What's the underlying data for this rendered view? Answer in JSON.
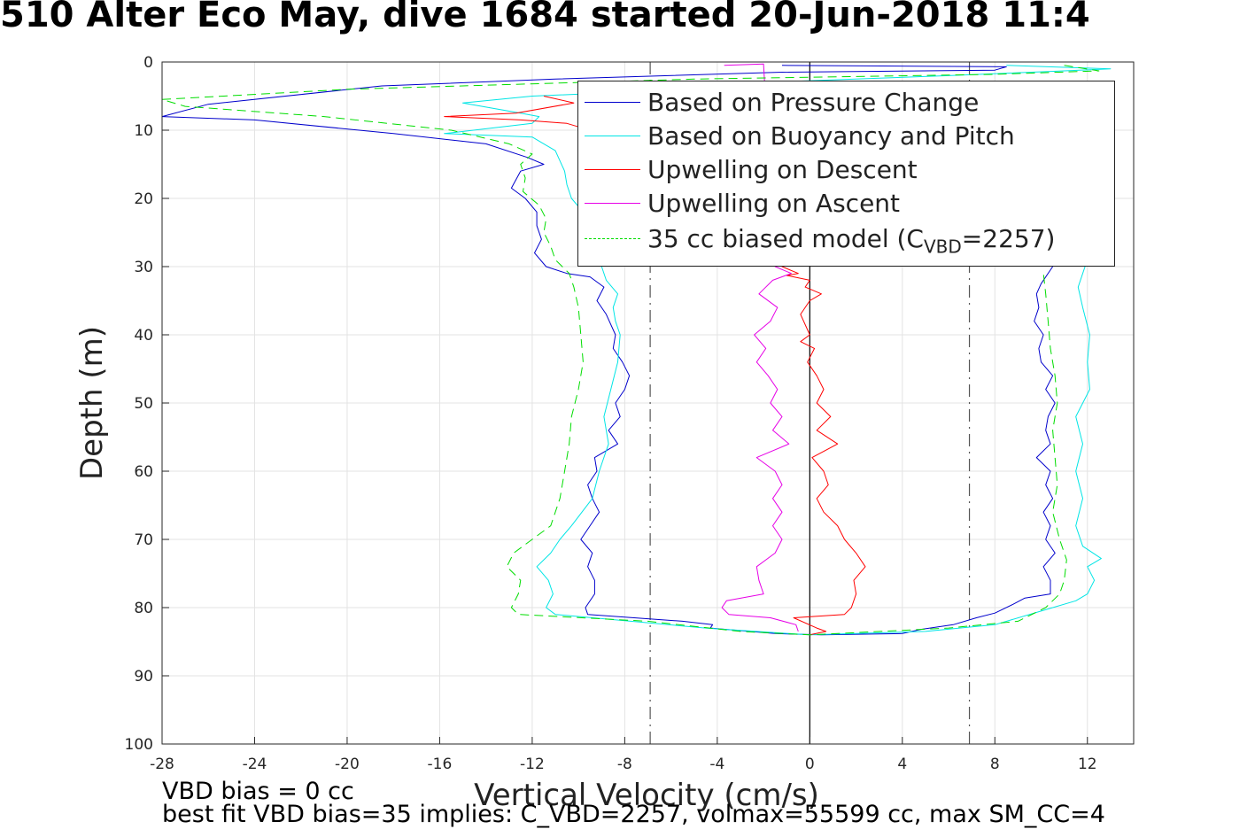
{
  "title": "510 Alter Eco May, dive 1684 started 20-Jun-2018 11:4",
  "notes": {
    "line1": "VBD bias = 0 cc",
    "line2": "best fit VBD bias=35 implies: C_VBD=2257, volmax=55599 cc, max SM_CC=4"
  },
  "chart_data": {
    "type": "line",
    "title": "510 Alter Eco May, dive 1684 started 20-Jun-2018 11:4",
    "xlabel": "Vertical Velocity (cm/s)",
    "ylabel": "Depth (m)",
    "xlim": [
      -28,
      14
    ],
    "ylim": [
      0,
      100
    ],
    "y_reversed": true,
    "grid": true,
    "legend_position": "top-right",
    "xticks": [
      -28,
      -24,
      -20,
      -16,
      -12,
      -8,
      -4,
      0,
      4,
      8,
      12
    ],
    "yticks": [
      0,
      10,
      20,
      30,
      40,
      50,
      60,
      70,
      80,
      90,
      100
    ],
    "reference_lines": [
      {
        "x": -6.9,
        "style": "dash-dot",
        "color": "#555555"
      },
      {
        "x": 6.9,
        "style": "dash-dot",
        "color": "#555555"
      },
      {
        "x": 0,
        "style": "solid",
        "color": "#000000"
      }
    ],
    "series": [
      {
        "name": "Based on Pressure Change",
        "color": "#0000cc",
        "style": "solid",
        "points": [
          [
            -1.2,
            0.5
          ],
          [
            8.5,
            0.7
          ],
          [
            8,
            1.2
          ],
          [
            -1.2,
            1.5
          ],
          [
            -11,
            2.5
          ],
          [
            -18.5,
            3.5
          ],
          [
            -26,
            6.2
          ],
          [
            -28,
            8
          ],
          [
            -24,
            8.5
          ],
          [
            -18,
            10.5
          ],
          [
            -14,
            12
          ],
          [
            -12.2,
            14
          ],
          [
            -11.5,
            15
          ],
          [
            -12.5,
            16
          ],
          [
            -12.9,
            18.5
          ],
          [
            -12.3,
            20
          ],
          [
            -11.8,
            22
          ],
          [
            -11.8,
            24
          ],
          [
            -11.6,
            26
          ],
          [
            -11.9,
            28
          ],
          [
            -11.4,
            30
          ],
          [
            -10.5,
            31
          ],
          [
            -9.5,
            31.5
          ],
          [
            -8.9,
            33
          ],
          [
            -9.2,
            35
          ],
          [
            -8.8,
            37
          ],
          [
            -8.4,
            40
          ],
          [
            -8.5,
            42
          ],
          [
            -8.1,
            44
          ],
          [
            -7.8,
            46
          ],
          [
            -8,
            48
          ],
          [
            -8.4,
            50
          ],
          [
            -8.2,
            52
          ],
          [
            -8.7,
            54
          ],
          [
            -8.3,
            56
          ],
          [
            -9.3,
            58
          ],
          [
            -9.2,
            60
          ],
          [
            -9.6,
            62
          ],
          [
            -9.4,
            64
          ],
          [
            -9.1,
            66
          ],
          [
            -9.5,
            68
          ],
          [
            -9.9,
            70
          ],
          [
            -9.4,
            72
          ],
          [
            -9.6,
            74
          ],
          [
            -9.3,
            76
          ],
          [
            -9.3,
            78
          ],
          [
            -9.7,
            80
          ],
          [
            -9.6,
            81
          ],
          [
            -5.5,
            82
          ],
          [
            -4.2,
            82.5
          ],
          [
            -4.3,
            83
          ],
          [
            -1.5,
            83.8
          ],
          [
            0.5,
            84
          ],
          [
            4,
            83.8
          ],
          [
            4.8,
            83.2
          ],
          [
            6.2,
            82.5
          ],
          [
            7.2,
            81.5
          ],
          [
            8,
            80.8
          ],
          [
            8.8,
            79.5
          ],
          [
            9.3,
            78.6
          ],
          [
            10.4,
            78
          ],
          [
            10.4,
            76
          ],
          [
            10.1,
            74
          ],
          [
            10.6,
            72
          ],
          [
            10.2,
            70
          ],
          [
            10.4,
            68
          ],
          [
            10.1,
            66
          ],
          [
            10.5,
            64
          ],
          [
            10.2,
            62
          ],
          [
            10.4,
            60
          ],
          [
            9.8,
            58
          ],
          [
            10.4,
            56
          ],
          [
            10.2,
            54
          ],
          [
            10.3,
            52
          ],
          [
            10.6,
            50
          ],
          [
            10.2,
            48
          ],
          [
            10.5,
            46
          ],
          [
            10,
            44
          ],
          [
            9.9,
            42
          ],
          [
            10.1,
            40
          ],
          [
            9.7,
            38
          ],
          [
            9.9,
            36
          ],
          [
            9.8,
            34
          ],
          [
            10,
            32.5
          ],
          [
            10.5,
            30
          ]
        ]
      },
      {
        "name": "Based on Buoyancy and Pitch",
        "color": "#00e5e5",
        "style": "solid",
        "points": [
          [
            8.5,
            0.5
          ],
          [
            13,
            1
          ],
          [
            11,
            1.3
          ],
          [
            6,
            2
          ],
          [
            -0.5,
            2.8
          ],
          [
            -5,
            4
          ],
          [
            -12,
            5
          ],
          [
            -15,
            6
          ],
          [
            -12.5,
            7.5
          ],
          [
            -11.7,
            8
          ],
          [
            -12,
            9
          ],
          [
            -15.8,
            10.5
          ],
          [
            -12,
            11
          ],
          [
            -11.5,
            12
          ],
          [
            -11,
            13
          ],
          [
            -10.8,
            14.5
          ],
          [
            -10.6,
            16
          ],
          [
            -10.5,
            18
          ],
          [
            -10.3,
            20
          ],
          [
            -9.8,
            22
          ],
          [
            -9.5,
            24
          ],
          [
            -9.4,
            26
          ],
          [
            -9.3,
            28
          ],
          [
            -9,
            30
          ],
          [
            -8.8,
            32
          ],
          [
            -8.3,
            34
          ],
          [
            -8.5,
            36
          ],
          [
            -8.4,
            38
          ],
          [
            -8.2,
            40
          ],
          [
            -8.3,
            44
          ],
          [
            -8.6,
            48
          ],
          [
            -8.9,
            52
          ],
          [
            -8.7,
            56
          ],
          [
            -9.1,
            60
          ],
          [
            -9.4,
            64
          ],
          [
            -10.3,
            68
          ],
          [
            -10.8,
            70
          ],
          [
            -11.2,
            72
          ],
          [
            -11.8,
            74
          ],
          [
            -11.3,
            76
          ],
          [
            -11.1,
            78
          ],
          [
            -11.4,
            80
          ],
          [
            -11,
            81
          ],
          [
            -4.5,
            83
          ],
          [
            0,
            84
          ],
          [
            5,
            83.5
          ],
          [
            8,
            82.5
          ],
          [
            10,
            80.5
          ],
          [
            11.5,
            79
          ],
          [
            12,
            78
          ],
          [
            12.3,
            76
          ],
          [
            12,
            74
          ],
          [
            12.6,
            72.8
          ],
          [
            11.8,
            71
          ],
          [
            11.5,
            68
          ],
          [
            11.8,
            64
          ],
          [
            11.5,
            60
          ],
          [
            11.8,
            56
          ],
          [
            11.5,
            52
          ],
          [
            12.1,
            48
          ],
          [
            12,
            44
          ],
          [
            12.1,
            40
          ],
          [
            11.8,
            36
          ],
          [
            11.6,
            33
          ],
          [
            11.8,
            31
          ],
          [
            11.9,
            30
          ]
        ]
      },
      {
        "name": "Upwelling on Descent",
        "color": "#ff0000",
        "style": "solid",
        "points": [
          [
            -11.5,
            5
          ],
          [
            -10.2,
            6
          ],
          [
            -12.7,
            7.5
          ],
          [
            -15.8,
            8
          ],
          [
            -12.5,
            8.5
          ],
          [
            -10.5,
            9
          ],
          [
            -10,
            9.5
          ],
          [
            -1.2,
            30
          ],
          [
            -0.5,
            31
          ],
          [
            -1,
            31.3
          ],
          [
            0,
            32
          ],
          [
            -0.2,
            33
          ],
          [
            0.5,
            34
          ],
          [
            0,
            35
          ],
          [
            -0.4,
            37
          ],
          [
            0,
            40
          ],
          [
            -0.4,
            41
          ],
          [
            0.2,
            42
          ],
          [
            -0.1,
            44
          ],
          [
            0.3,
            46
          ],
          [
            0.6,
            48
          ],
          [
            0.3,
            50
          ],
          [
            0.9,
            52
          ],
          [
            0.3,
            54
          ],
          [
            1.2,
            56
          ],
          [
            0.1,
            58
          ],
          [
            0.6,
            60
          ],
          [
            0.8,
            62
          ],
          [
            0.3,
            64
          ],
          [
            0.6,
            66
          ],
          [
            1.2,
            68
          ],
          [
            1.5,
            70
          ],
          [
            2,
            72
          ],
          [
            2.4,
            74
          ],
          [
            1.9,
            76
          ],
          [
            2,
            78
          ],
          [
            1.8,
            80
          ],
          [
            1.5,
            81
          ],
          [
            -0.7,
            81.5
          ],
          [
            0.3,
            83
          ],
          [
            0.7,
            83.5
          ],
          [
            0,
            84
          ]
        ]
      },
      {
        "name": "Upwelling on Ascent",
        "color": "#e600e6",
        "style": "solid",
        "points": [
          [
            -3.7,
            0.5
          ],
          [
            -2,
            0.3
          ],
          [
            -1.5,
            30
          ],
          [
            -0.8,
            31
          ],
          [
            -1.6,
            32
          ],
          [
            -2.2,
            34
          ],
          [
            -1.4,
            36
          ],
          [
            -1.7,
            38
          ],
          [
            -2.4,
            40
          ],
          [
            -1.9,
            42
          ],
          [
            -2.3,
            44
          ],
          [
            -1.8,
            46
          ],
          [
            -1.4,
            48
          ],
          [
            -1.7,
            50
          ],
          [
            -1.2,
            52
          ],
          [
            -1.6,
            54
          ],
          [
            -0.9,
            56
          ],
          [
            -2.3,
            58
          ],
          [
            -1.5,
            60
          ],
          [
            -1.2,
            62
          ],
          [
            -1.6,
            64
          ],
          [
            -1.2,
            66
          ],
          [
            -1.6,
            68
          ],
          [
            -1.2,
            70
          ],
          [
            -1.5,
            72
          ],
          [
            -2.3,
            74
          ],
          [
            -2.2,
            76
          ],
          [
            -2,
            78
          ],
          [
            -3.6,
            79
          ],
          [
            -3.8,
            80
          ],
          [
            -3.5,
            81
          ],
          [
            -1.7,
            81.5
          ],
          [
            -0.6,
            82.5
          ],
          [
            -0.5,
            83.5
          ]
        ]
      },
      {
        "name": "35 cc biased model (C",
        "legend_subscript": "VBD",
        "legend_suffix": "=2257)",
        "color": "#00dd00",
        "style": "dashed",
        "points": [
          [
            11,
            0.5
          ],
          [
            12.5,
            1.3
          ],
          [
            8,
            1.8
          ],
          [
            -5,
            2.5
          ],
          [
            -20,
            4
          ],
          [
            -28,
            5.5
          ],
          [
            -27,
            6.5
          ],
          [
            -21,
            8
          ],
          [
            -15.5,
            10
          ],
          [
            -13,
            12
          ],
          [
            -12,
            13.5
          ],
          [
            -12.5,
            15
          ],
          [
            -12.3,
            17
          ],
          [
            -12.4,
            19
          ],
          [
            -11.7,
            21
          ],
          [
            -11.4,
            23
          ],
          [
            -11.5,
            25
          ],
          [
            -11.2,
            27
          ],
          [
            -11,
            29
          ],
          [
            -10.4,
            31
          ],
          [
            -10.2,
            33
          ],
          [
            -10,
            36
          ],
          [
            -9.9,
            40
          ],
          [
            -9.8,
            44
          ],
          [
            -10,
            48
          ],
          [
            -10.3,
            52
          ],
          [
            -10.4,
            56
          ],
          [
            -10.6,
            60
          ],
          [
            -10.8,
            64
          ],
          [
            -11.2,
            68
          ],
          [
            -12,
            70
          ],
          [
            -12.8,
            72
          ],
          [
            -13.1,
            74
          ],
          [
            -12.5,
            76
          ],
          [
            -12.6,
            78
          ],
          [
            -12.9,
            80
          ],
          [
            -12.6,
            81
          ],
          [
            -7,
            82
          ],
          [
            -3,
            83.5
          ],
          [
            0,
            84
          ],
          [
            6,
            83
          ],
          [
            9,
            82
          ],
          [
            10.2,
            80
          ],
          [
            10.8,
            78
          ],
          [
            11,
            76
          ],
          [
            11.1,
            73
          ],
          [
            10.8,
            70
          ],
          [
            10.5,
            66
          ],
          [
            10.7,
            62
          ],
          [
            10.6,
            58
          ],
          [
            10.5,
            54
          ],
          [
            10.7,
            50
          ],
          [
            10.6,
            46
          ],
          [
            10.4,
            42
          ],
          [
            10.3,
            38
          ],
          [
            10.2,
            34
          ],
          [
            10.1,
            31
          ]
        ]
      }
    ]
  }
}
